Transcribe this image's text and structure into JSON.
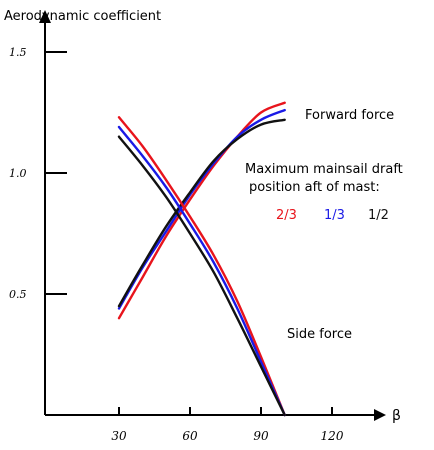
{
  "chart_data": {
    "type": "line",
    "ylabel": "Aerodynamic coefficient",
    "xlabel": "β",
    "xlim": [
      20,
      125
    ],
    "ylim": [
      0,
      1.6
    ],
    "x_ticks": [
      30,
      60,
      90,
      120
    ],
    "x_tick_labels": [
      "30",
      "60",
      "90",
      "120"
    ],
    "y_ticks": [
      0.5,
      1.0,
      1.5
    ],
    "y_tick_labels": [
      "0.5",
      "1.0",
      "1.5"
    ],
    "annotations": {
      "forward_force": "Forward force",
      "side_force": "Side force",
      "legend_title_line1": "Maximum mainsail draft",
      "legend_title_line2": "position aft of mast:"
    },
    "groups": [
      {
        "label": "Forward force",
        "series": [
          {
            "name": "2/3",
            "color": "#e8141c",
            "x": [
              30,
              40,
              50,
              60,
              70,
              80,
              90,
              100
            ],
            "y": [
              0.4,
              0.57,
              0.74,
              0.89,
              1.03,
              1.15,
              1.25,
              1.29
            ]
          },
          {
            "name": "1/3",
            "color": "#1a1ae6",
            "x": [
              30,
              40,
              50,
              60,
              70,
              80,
              90,
              100
            ],
            "y": [
              0.44,
              0.61,
              0.76,
              0.91,
              1.04,
              1.15,
              1.22,
              1.26
            ]
          },
          {
            "name": "1/2",
            "color": "#111111",
            "x": [
              30,
              40,
              50,
              60,
              70,
              80,
              90,
              100
            ],
            "y": [
              0.45,
              0.62,
              0.78,
              0.92,
              1.05,
              1.14,
              1.2,
              1.22
            ]
          }
        ]
      },
      {
        "label": "Side force",
        "series": [
          {
            "name": "2/3",
            "color": "#e8141c",
            "x": [
              30,
              40,
              50,
              60,
              70,
              80,
              90,
              100
            ],
            "y": [
              1.23,
              1.11,
              0.97,
              0.82,
              0.66,
              0.47,
              0.24,
              0.0
            ]
          },
          {
            "name": "1/3",
            "color": "#1a1ae6",
            "x": [
              30,
              40,
              50,
              60,
              70,
              80,
              90,
              100
            ],
            "y": [
              1.19,
              1.07,
              0.94,
              0.79,
              0.63,
              0.44,
              0.22,
              0.0
            ]
          },
          {
            "name": "1/2",
            "color": "#111111",
            "x": [
              30,
              40,
              50,
              60,
              70,
              80,
              90,
              100
            ],
            "y": [
              1.15,
              1.03,
              0.9,
              0.75,
              0.59,
              0.4,
              0.2,
              0.0
            ]
          }
        ]
      }
    ],
    "legend": [
      {
        "label": "2/3",
        "color": "#e8141c"
      },
      {
        "label": "1/3",
        "color": "#1a1ae6"
      },
      {
        "label": "1/2",
        "color": "#111111"
      }
    ],
    "grid": false
  }
}
